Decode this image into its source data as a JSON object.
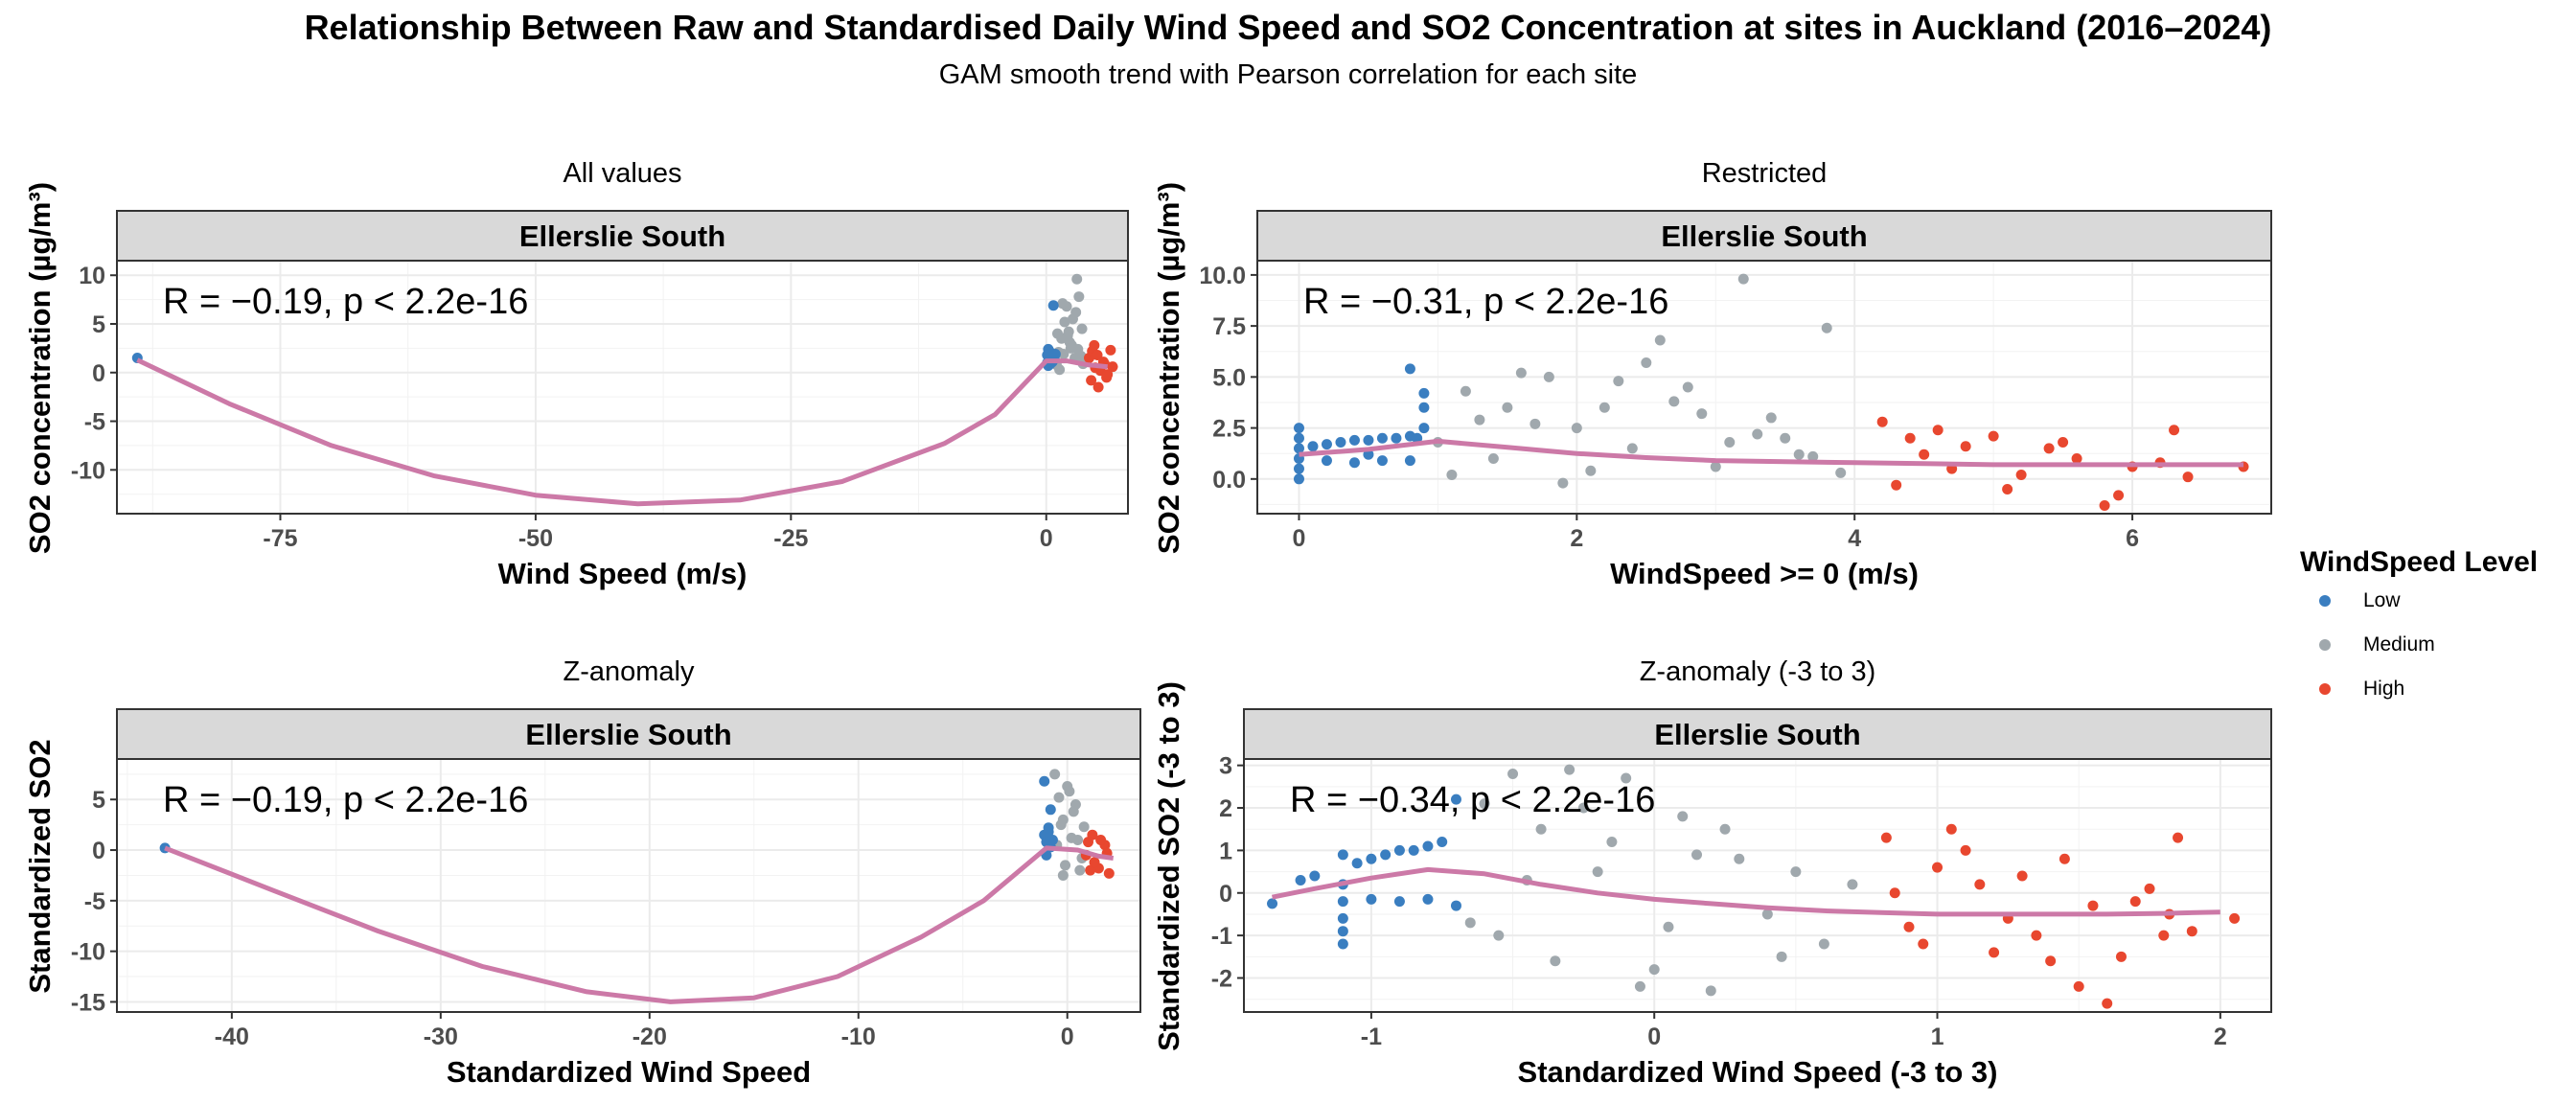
{
  "title": "Relationship Between Raw and Standardised Daily Wind Speed and SO2 Concentration at sites in Auckland (2016–2024)",
  "subtitle": "GAM smooth trend with Pearson correlation for each site",
  "legend": {
    "title": "WindSpeed Level",
    "items": [
      {
        "label": "Low",
        "color": "#3A7EC0"
      },
      {
        "label": "Medium",
        "color": "#A0A8AD"
      },
      {
        "label": "High",
        "color": "#E8472F"
      }
    ]
  },
  "colors": {
    "smooth": "#CC79A7",
    "strip": "#D9D9D9",
    "grid": "#EBEBEB"
  },
  "chart_data": [
    {
      "type": "scatter",
      "panel_title": "All values",
      "strip": "Ellerslie South",
      "xlabel": "Wind Speed (m/s)",
      "ylabel": "SO2  concentration (µg/m³)",
      "xlim": [
        -91,
        8
      ],
      "ylim": [
        -14.5,
        11.5
      ],
      "xticks": [
        -75,
        -50,
        -25,
        0
      ],
      "xtick_labels": [
        "-75",
        "-50",
        "-25",
        "0"
      ],
      "yticks": [
        -10,
        -5,
        0,
        5,
        10
      ],
      "ytick_labels": [
        "-10",
        "-5",
        "0",
        "5",
        "10"
      ],
      "annotation": "R = −0.19, p < 2.2e-16",
      "smooth": {
        "x": [
          -89,
          -80,
          -70,
          -60,
          -50,
          -40,
          -30,
          -20,
          -10,
          -5,
          0,
          2,
          4,
          6
        ],
        "y": [
          1.3,
          -3.2,
          -7.5,
          -10.6,
          -12.6,
          -13.5,
          -13.1,
          -11.2,
          -7.3,
          -4.3,
          1.2,
          1.2,
          0.8,
          0.6
        ]
      },
      "points": {
        "low": {
          "x": [
            -89,
            0.1,
            0.2,
            0.4,
            0.5,
            0.3,
            0.6,
            0.8,
            0.2,
            0.7,
            0.9,
            0.1
          ],
          "y": [
            1.5,
            1.8,
            2.4,
            0.9,
            1.6,
            2.2,
            1.1,
            1.4,
            0.7,
            6.9,
            1.9,
            1.0
          ]
        },
        "medium": {
          "x": [
            1.0,
            1.2,
            1.5,
            1.8,
            2.0,
            2.2,
            2.5,
            2.8,
            3.0,
            3.2,
            3.5,
            3.8,
            1.3,
            1.7,
            2.3,
            2.6,
            3.1,
            3.6,
            1.1,
            2.9,
            1.6,
            2.1,
            3.4,
            2.4
          ],
          "y": [
            0.8,
            2.1,
            3.5,
            5.2,
            6.8,
            4.2,
            2.8,
            1.5,
            9.6,
            7.8,
            4.5,
            1.2,
            0.3,
            1.9,
            3.1,
            5.5,
            2.4,
            0.9,
            4.0,
            6.2,
            7.1,
            3.8,
            1.7,
            2.5
          ]
        },
        "high": {
          "x": [
            4.2,
            4.5,
            4.8,
            5.0,
            5.3,
            5.6,
            5.9,
            6.3,
            6.5,
            4.4,
            5.1,
            5.7,
            4.7,
            6.0
          ],
          "y": [
            1.5,
            2.2,
            0.5,
            1.8,
            0.2,
            1.1,
            -0.5,
            2.3,
            0.6,
            -0.8,
            -1.5,
            0.9,
            2.8,
            -0.2
          ]
        }
      }
    },
    {
      "type": "scatter",
      "panel_title": "Restricted",
      "strip": "Ellerslie South",
      "xlabel": "WindSpeed >= 0 (m/s)",
      "ylabel": "SO2  concentration (µg/m³)",
      "xlim": [
        -0.3,
        7.0
      ],
      "ylim": [
        -1.7,
        10.7
      ],
      "xticks": [
        0,
        2,
        4,
        6
      ],
      "xtick_labels": [
        "0",
        "2",
        "4",
        "6"
      ],
      "yticks": [
        0,
        2.5,
        5,
        7.5,
        10
      ],
      "ytick_labels": [
        "0.0",
        "2.5",
        "5.0",
        "7.5",
        "10.0"
      ],
      "annotation": "R = −0.31, p < 2.2e-16",
      "smooth": {
        "x": [
          0,
          0.5,
          1.0,
          1.5,
          2.0,
          2.5,
          3.0,
          3.5,
          4.0,
          4.5,
          5.0,
          5.5,
          6.0,
          6.5,
          6.8
        ],
        "y": [
          1.2,
          1.45,
          1.85,
          1.55,
          1.25,
          1.05,
          0.9,
          0.85,
          0.8,
          0.75,
          0.7,
          0.7,
          0.7,
          0.7,
          0.7
        ]
      },
      "points": {
        "low": {
          "x": [
            0,
            0,
            0,
            0,
            0,
            0,
            0.1,
            0.2,
            0.3,
            0.4,
            0.5,
            0.6,
            0.7,
            0.8,
            0.85,
            0.9,
            0.2,
            0.4,
            0.6,
            0.8,
            0.9,
            0.9,
            0.8,
            0.5
          ],
          "y": [
            2.5,
            2.0,
            1.5,
            1.0,
            0.5,
            0.0,
            1.6,
            1.7,
            1.8,
            1.9,
            1.9,
            2.0,
            2.0,
            2.1,
            2.0,
            3.5,
            0.9,
            0.8,
            0.9,
            0.9,
            2.5,
            4.2,
            5.4,
            1.2
          ]
        },
        "medium": {
          "x": [
            1.0,
            1.2,
            1.5,
            1.8,
            2.0,
            2.3,
            2.6,
            2.9,
            3.2,
            3.5,
            3.8,
            1.1,
            1.4,
            1.7,
            2.1,
            2.4,
            2.7,
            3.0,
            3.3,
            3.6,
            3.9,
            1.3,
            1.6,
            2.2,
            2.5,
            3.1,
            3.4,
            3.7,
            2.8,
            1.9
          ],
          "y": [
            1.8,
            4.3,
            3.5,
            5.0,
            2.5,
            4.8,
            6.8,
            3.2,
            9.8,
            2.0,
            7.4,
            0.2,
            1.0,
            2.7,
            0.4,
            1.5,
            3.8,
            0.6,
            2.2,
            1.2,
            0.3,
            2.9,
            5.2,
            3.5,
            5.7,
            1.8,
            3.0,
            1.1,
            4.5,
            -0.2
          ]
        },
        "high": {
          "x": [
            4.2,
            4.4,
            4.6,
            4.8,
            5.0,
            5.2,
            5.4,
            5.6,
            5.8,
            6.0,
            6.2,
            6.3,
            6.4,
            6.8,
            4.3,
            4.7,
            5.1,
            5.5,
            5.9,
            4.5
          ],
          "y": [
            2.8,
            2.0,
            2.4,
            1.6,
            2.1,
            0.2,
            1.5,
            1.0,
            -1.3,
            0.6,
            0.8,
            2.4,
            0.1,
            0.6,
            -0.3,
            0.5,
            -0.5,
            1.8,
            -0.8,
            1.2
          ]
        }
      }
    },
    {
      "type": "scatter",
      "panel_title": "Z-anomaly",
      "strip": "Ellerslie South",
      "xlabel": "Standardized Wind Speed",
      "ylabel": "Standardized SO2",
      "xlim": [
        -45.5,
        3.5
      ],
      "ylim": [
        -16,
        9
      ],
      "xticks": [
        -40,
        -30,
        -20,
        -10,
        0
      ],
      "xtick_labels": [
        "-40",
        "-30",
        "-20",
        "-10",
        "0"
      ],
      "yticks": [
        -15,
        -10,
        -5,
        0,
        5
      ],
      "ytick_labels": [
        "-15",
        "-10",
        "-5",
        "0",
        "5"
      ],
      "annotation": "R = −0.19, p < 2.2e-16",
      "smooth": {
        "x": [
          -43.2,
          -38,
          -33,
          -28,
          -23,
          -19,
          -15,
          -11,
          -7,
          -4,
          -1,
          0.5,
          1.5,
          2.2
        ],
        "y": [
          0.2,
          -4.0,
          -8.0,
          -11.5,
          -14.0,
          -15.0,
          -14.6,
          -12.5,
          -8.6,
          -5.0,
          0.2,
          0.0,
          -0.6,
          -0.8
        ]
      },
      "points": {
        "low": {
          "x": [
            -43.2,
            -1.1,
            -1.0,
            -0.9,
            -0.8,
            -0.7,
            -1.1,
            -0.9,
            -1.0,
            -0.8
          ],
          "y": [
            0.2,
            1.5,
            0.8,
            2.2,
            0.3,
            1.0,
            6.8,
            1.8,
            -0.5,
            4.0
          ]
        },
        "medium": {
          "x": [
            -0.6,
            -0.4,
            -0.2,
            0,
            0.2,
            0.4,
            0.6,
            0.8,
            -0.5,
            -0.1,
            0.3,
            0.7,
            -0.3,
            0.1,
            0.5,
            -0.2
          ],
          "y": [
            7.5,
            5.2,
            3.0,
            6.3,
            1.2,
            4.5,
            -2.0,
            2.3,
            0.5,
            -1.5,
            3.8,
            -0.8,
            2.5,
            5.8,
            1.0,
            -2.5
          ]
        },
        "high": {
          "x": [
            0.9,
            1.2,
            1.5,
            1.8,
            2.0,
            1.1,
            1.6,
            1.3,
            1.9,
            1.0
          ],
          "y": [
            -0.5,
            1.5,
            -1.8,
            0.5,
            -2.3,
            -2.0,
            1.0,
            -1.2,
            -0.3,
            0.8
          ]
        }
      }
    },
    {
      "type": "scatter",
      "panel_title": "Z-anomaly (-3 to 3)",
      "strip": "Ellerslie South",
      "xlabel": "Standardized Wind Speed (-3 to 3)",
      "ylabel": "Standardized SO2 (-3 to 3)",
      "xlim": [
        -1.45,
        2.18
      ],
      "ylim": [
        -2.8,
        3.15
      ],
      "xticks": [
        -1,
        0,
        1,
        2
      ],
      "xtick_labels": [
        "-1",
        "0",
        "1",
        "2"
      ],
      "yticks": [
        -2,
        -1,
        0,
        1,
        2,
        3
      ],
      "ytick_labels": [
        "-2",
        "-1",
        "0",
        "1",
        "2",
        "3"
      ],
      "annotation": "R = −0.34, p < 2.2e-16",
      "smooth": {
        "x": [
          -1.35,
          -1.2,
          -1.0,
          -0.8,
          -0.6,
          -0.4,
          -0.2,
          0,
          0.2,
          0.4,
          0.6,
          0.8,
          1.0,
          1.2,
          1.4,
          1.6,
          1.8,
          2.0
        ],
        "y": [
          -0.1,
          0.1,
          0.35,
          0.55,
          0.45,
          0.2,
          0.0,
          -0.15,
          -0.25,
          -0.35,
          -0.42,
          -0.46,
          -0.5,
          -0.5,
          -0.5,
          -0.5,
          -0.48,
          -0.45
        ]
      },
      "points": {
        "low": {
          "x": [
            -1.35,
            -1.25,
            -1.2,
            -1.1,
            -1.1,
            -1.1,
            -1.1,
            -1.1,
            -1.1,
            -1.05,
            -1.0,
            -0.95,
            -0.9,
            -0.85,
            -0.8,
            -0.75,
            -0.7,
            -0.7,
            -1.0,
            -0.9,
            -0.8
          ],
          "y": [
            -0.25,
            0.3,
            0.4,
            0.9,
            0.2,
            -0.2,
            -0.6,
            -0.9,
            -1.2,
            0.7,
            0.8,
            0.9,
            1.0,
            1.0,
            1.1,
            1.2,
            2.2,
            -0.3,
            -0.15,
            -0.2,
            -0.15
          ]
        },
        "medium": {
          "x": [
            -0.65,
            -0.6,
            -0.5,
            -0.4,
            -0.3,
            -0.2,
            -0.1,
            0,
            0.1,
            0.2,
            0.3,
            0.4,
            0.5,
            0.6,
            0.7,
            -0.55,
            -0.35,
            -0.15,
            0.05,
            0.25,
            0.45,
            -0.45,
            -0.25,
            0.15,
            -0.05
          ],
          "y": [
            -0.7,
            2.1,
            2.8,
            1.5,
            2.9,
            0.5,
            2.7,
            -1.8,
            1.8,
            -2.3,
            0.8,
            -0.5,
            0.5,
            -1.2,
            0.2,
            -1.0,
            -1.6,
            1.2,
            -0.8,
            1.5,
            -1.5,
            0.3,
            2.0,
            0.9,
            -2.2
          ]
        },
        "high": {
          "x": [
            0.82,
            0.9,
            1.0,
            1.1,
            1.2,
            1.3,
            1.4,
            1.5,
            1.6,
            1.7,
            1.8,
            1.85,
            1.9,
            2.05,
            0.85,
            0.95,
            1.05,
            1.15,
            1.25,
            1.35,
            1.45,
            1.55,
            1.65,
            1.75,
            1.82
          ],
          "y": [
            1.3,
            -0.8,
            0.6,
            1.0,
            -1.4,
            0.4,
            -1.6,
            -2.2,
            -2.6,
            -0.2,
            -1.0,
            1.3,
            -0.9,
            -0.6,
            0.0,
            -1.2,
            1.5,
            0.2,
            -0.6,
            -1.0,
            0.8,
            -0.3,
            -1.5,
            0.1,
            -0.5
          ]
        }
      }
    }
  ]
}
